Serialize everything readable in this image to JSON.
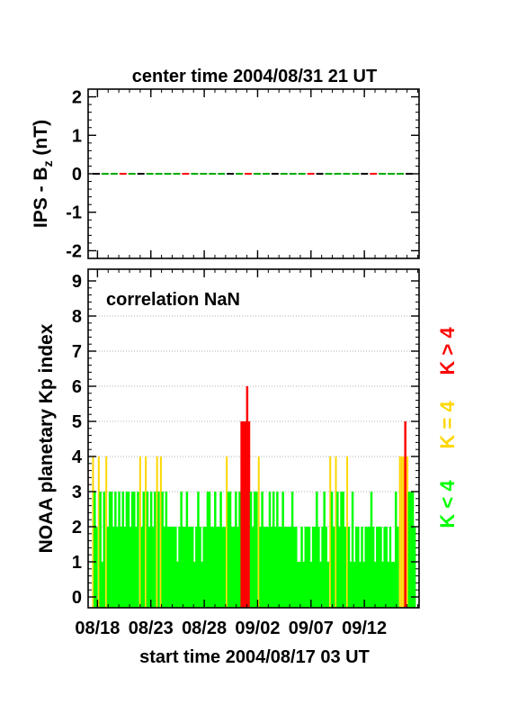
{
  "top_title": "center time 2004/08/31 21 UT",
  "bottom_title": "start time 2004/08/17 03 UT",
  "top_ylabel_main": "IPS - B",
  "top_ylabel_sub": "z",
  "top_ylabel_unit": " (nT)",
  "bottom_ylabel": "NOAA planetary Kp index",
  "annotation": "correlation NaN",
  "legend": [
    {
      "label": "K > 4",
      "color": "#ff0000"
    },
    {
      "label": "K = 4",
      "color": "#ffd700"
    },
    {
      "label": "K < 4",
      "color": "#00ff00"
    }
  ],
  "x_tick_labels": [
    "08/18",
    "08/23",
    "08/28",
    "09/02",
    "09/07",
    "09/12"
  ],
  "chart_data": [
    {
      "type": "line",
      "title": "center time 2004/08/31 21 UT",
      "ylabel": "IPS - Bz (nT)",
      "ylim": [
        -2.2,
        2.2
      ],
      "yticks": [
        -2,
        -1,
        0,
        1,
        2
      ],
      "series": [
        {
          "values": [
            0,
            0
          ],
          "x": [
            0,
            31
          ],
          "dash_colors": [
            "#00aa00",
            "#ff0000",
            "#000000"
          ]
        }
      ]
    },
    {
      "type": "bar",
      "xlabel": "start time 2004/08/17 03 UT",
      "ylabel": "NOAA planetary Kp index",
      "ylim": [
        0,
        9
      ],
      "yticks": [
        0,
        1,
        2,
        3,
        4,
        5,
        6,
        7,
        8,
        9
      ],
      "grid": true,
      "days_span": 31,
      "x_tick_labels": [
        "08/18",
        "08/23",
        "08/28",
        "09/02",
        "09/07",
        "09/12"
      ],
      "kp_3hour_values": [
        4,
        3,
        2,
        4,
        3,
        1,
        3,
        4,
        2,
        3,
        3,
        2,
        3,
        2,
        3,
        2,
        3,
        2,
        3,
        3,
        2,
        3,
        3,
        2,
        3,
        4,
        2,
        3,
        4,
        3,
        2,
        3,
        2,
        3,
        4,
        3,
        4,
        3,
        2,
        3,
        2,
        2,
        2,
        2,
        2,
        1,
        2,
        3,
        2,
        2,
        3,
        2,
        2,
        2,
        1,
        2,
        3,
        2,
        1,
        2,
        2,
        3,
        3,
        2,
        2,
        3,
        2,
        2,
        3,
        2,
        2,
        4,
        3,
        3,
        2,
        2,
        3,
        2,
        3,
        5,
        5,
        5,
        6,
        5,
        3,
        2,
        3,
        3,
        4,
        2,
        3,
        2,
        2,
        2,
        3,
        2,
        3,
        2,
        3,
        2,
        2,
        3,
        2,
        2,
        2,
        2,
        3,
        2,
        2,
        1,
        1,
        2,
        1,
        2,
        2,
        2,
        1,
        2,
        2,
        3,
        2,
        1,
        2,
        3,
        2,
        1,
        4,
        3,
        2,
        4,
        3,
        2,
        3,
        3,
        2,
        4,
        2,
        1,
        3,
        1,
        2,
        2,
        1,
        2,
        1,
        2,
        2,
        2,
        3,
        2,
        1,
        2,
        2,
        2,
        1,
        2,
        2,
        1,
        2,
        1,
        1,
        3,
        2,
        4,
        4,
        4,
        5,
        4,
        3,
        3,
        3,
        2
      ]
    }
  ]
}
